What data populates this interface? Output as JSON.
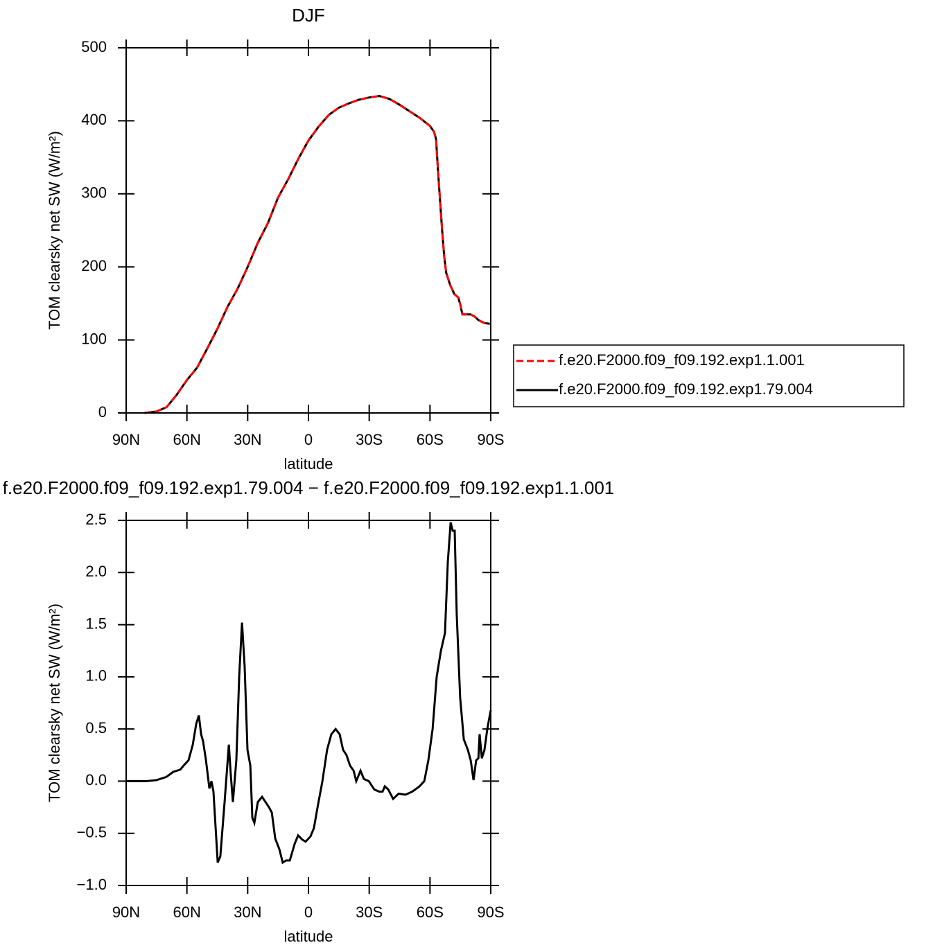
{
  "chart_data": [
    {
      "type": "line",
      "title": "DJF",
      "xlabel": "latitude",
      "ylabel": "TOM clearsky net SW (W/m²)",
      "xlim": [
        90,
        -90
      ],
      "xticks": [
        {
          "value": 90,
          "label": "90N"
        },
        {
          "value": 60,
          "label": "60N"
        },
        {
          "value": 30,
          "label": "30N"
        },
        0,
        {
          "value": -30,
          "label": "30S"
        },
        {
          "value": -60,
          "label": "60S"
        },
        {
          "value": -90,
          "label": "90S"
        }
      ],
      "ylim": [
        0,
        500
      ],
      "yticks": [
        0,
        100,
        200,
        300,
        400,
        500
      ],
      "legend": "right",
      "x": [
        81,
        75,
        70,
        65,
        60,
        55,
        50,
        45,
        40,
        35,
        30,
        25,
        20,
        15,
        10,
        5,
        0,
        -5,
        -10,
        -15,
        -20,
        -25,
        -30,
        -35,
        -40,
        -45,
        -50,
        -55,
        -60,
        -62,
        -63,
        -64,
        -65,
        -66,
        -67,
        -68,
        -70,
        -72,
        -74,
        -75,
        -76,
        -80,
        -82,
        -84,
        -87,
        -90
      ],
      "series": [
        {
          "name": "f.e20.F2000.f09_f09.192.exp1.1.001",
          "color": "#ff0000",
          "linestyle": "dashed",
          "values": [
            0,
            2,
            8,
            25,
            45,
            62,
            88,
            115,
            145,
            170,
            200,
            233,
            260,
            295,
            320,
            348,
            373,
            392,
            408,
            418,
            424,
            429,
            432,
            434,
            430,
            422,
            413,
            404,
            393,
            385,
            375,
            330,
            290,
            250,
            215,
            192,
            175,
            163,
            158,
            148,
            135,
            135,
            132,
            127,
            123,
            122
          ]
        },
        {
          "name": "f.e20.F2000.f09_f09.192.exp1.79.004",
          "color": "#000000",
          "linestyle": "solid",
          "values": [
            0,
            2,
            8,
            25,
            45,
            62,
            88,
            115,
            145,
            170,
            200,
            233,
            260,
            295,
            320,
            348,
            373,
            392,
            408,
            418,
            424,
            429,
            432,
            434,
            430,
            422,
            413,
            404,
            393,
            385,
            375,
            330,
            290,
            250,
            215,
            192,
            175,
            163,
            158,
            148,
            135,
            135,
            132,
            127,
            123,
            122
          ]
        }
      ]
    },
    {
      "type": "line",
      "title": "f.e20.F2000.f09_f09.192.exp1.79.004 − f.e20.F2000.f09_f09.192.exp1.1.001",
      "xlabel": "latitude",
      "ylabel": "TOM clearsky net SW (W/m²)",
      "xlim": [
        90,
        -90
      ],
      "xticks": [
        {
          "value": 90,
          "label": "90N"
        },
        {
          "value": 60,
          "label": "60N"
        },
        {
          "value": 30,
          "label": "30N"
        },
        0,
        {
          "value": -30,
          "label": "30S"
        },
        {
          "value": -60,
          "label": "60S"
        },
        {
          "value": -90,
          "label": "90S"
        }
      ],
      "ylim": [
        -1,
        2.5
      ],
      "yticks": [
        {
          "value": -1,
          "label": "−1.0"
        },
        {
          "value": -0.5,
          "label": "−0.5"
        },
        {
          "value": 0,
          "label": "0.0"
        },
        0.5,
        {
          "value": 1,
          "label": "1.0"
        },
        1.5,
        {
          "value": 2,
          "label": "2.0"
        },
        2.5
      ],
      "color": "#000000",
      "x": [
        90,
        80,
        75,
        70.2,
        66.7,
        63.3,
        61.6,
        59.2,
        57.1,
        55.4,
        54.1,
        53,
        52,
        50.6,
        48.9,
        47.9,
        46.9,
        44.8,
        43.5,
        41.4,
        39.3,
        38.3,
        37.3,
        35.6,
        34.2,
        32.8,
        31.5,
        30.1,
        28.7,
        27.7,
        26.7,
        25,
        22.9,
        21.2,
        19.5,
        18.1,
        16.4,
        14.4,
        12.7,
        11,
        9.2,
        6.8,
        5.1,
        3.1,
        1.4,
        -1,
        -2.7,
        -4.5,
        -6.9,
        -9.2,
        -11.3,
        -13.4,
        -15.4,
        -17.1,
        -18.8,
        -20.5,
        -22.3,
        -23.6,
        -25.7,
        -27.4,
        -29.8,
        -32.5,
        -34.9,
        -36.6,
        -37.7,
        -39.4,
        -41.8,
        -44.5,
        -47.9,
        -51.3,
        -54.8,
        -57.2,
        -59.2,
        -61.3,
        -63.3,
        -65.4,
        -67.4,
        -68.8,
        -70.2,
        -71.2,
        -72.2,
        -73.2,
        -74.9,
        -76.7,
        -78.7,
        -80.1,
        -81.5,
        -82.8,
        -83.9,
        -84.5,
        -85.6,
        -86.9,
        -88.3,
        -90
      ],
      "values": [
        0,
        0,
        0.01,
        0.04,
        0.09,
        0.11,
        0.15,
        0.2,
        0.35,
        0.55,
        0.63,
        0.45,
        0.38,
        0.2,
        -0.07,
        0,
        -0.1,
        -0.78,
        -0.72,
        -0.2,
        0.35,
        0.05,
        -0.2,
        0.2,
        1.0,
        1.52,
        1.1,
        0.3,
        0.15,
        -0.35,
        -0.4,
        -0.2,
        -0.15,
        -0.2,
        -0.25,
        -0.3,
        -0.55,
        -0.65,
        -0.78,
        -0.76,
        -0.76,
        -0.6,
        -0.52,
        -0.56,
        -0.58,
        -0.53,
        -0.45,
        -0.25,
        0,
        0.3,
        0.45,
        0.5,
        0.45,
        0.3,
        0.25,
        0.15,
        0.1,
        0,
        0.1,
        0.02,
        0,
        -0.08,
        -0.1,
        -0.1,
        -0.05,
        -0.08,
        -0.17,
        -0.12,
        -0.13,
        -0.1,
        -0.05,
        0,
        0.2,
        0.5,
        1.0,
        1.25,
        1.42,
        2.1,
        2.48,
        2.4,
        2.4,
        1.6,
        0.8,
        0.4,
        0.3,
        0.2,
        0.01,
        0.2,
        0.22,
        0.45,
        0.22,
        0.3,
        0.5,
        0.68
      ]
    }
  ]
}
